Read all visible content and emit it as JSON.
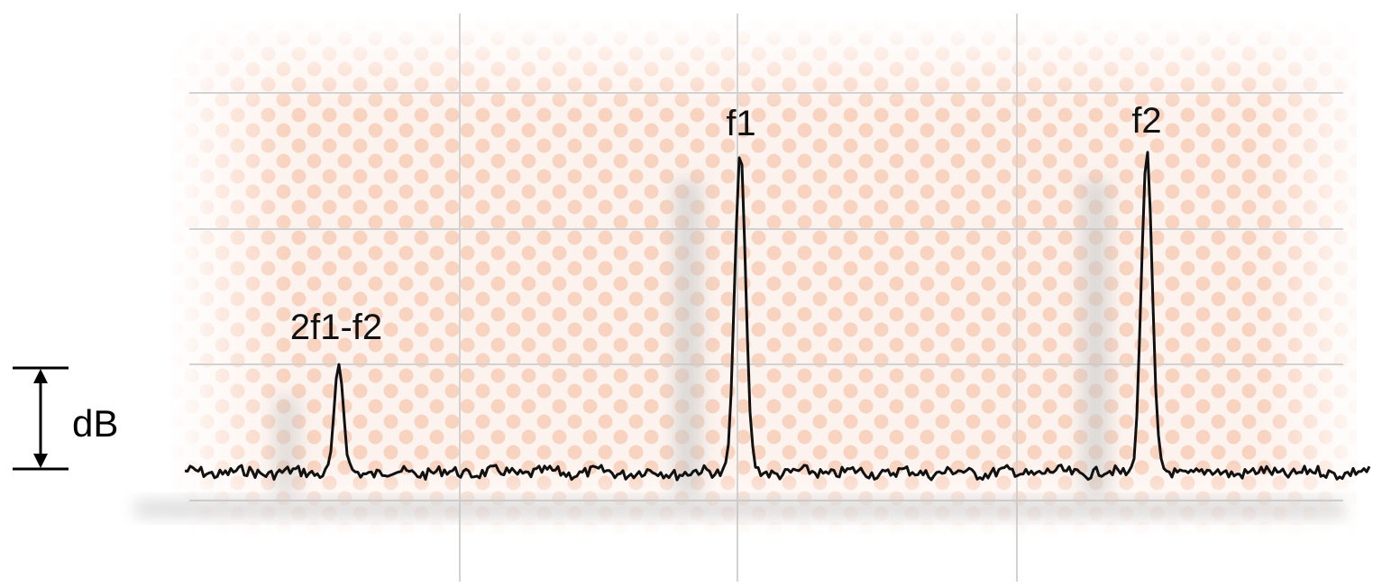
{
  "chart_data": {
    "type": "line",
    "title": "",
    "xlabel": "",
    "ylabel": "",
    "grid": true,
    "scale_indicator": {
      "label": "dB"
    },
    "peaks": [
      {
        "label": "2f1-f2",
        "relative_height": 0.33
      },
      {
        "label": "f1",
        "relative_height": 1.0
      },
      {
        "label": "f2",
        "relative_height": 1.0
      }
    ]
  },
  "colors": {
    "trace": "#111111",
    "grid": "#d2d2d2",
    "background_pattern": "#f6c9b2",
    "arrow": "#000000"
  }
}
